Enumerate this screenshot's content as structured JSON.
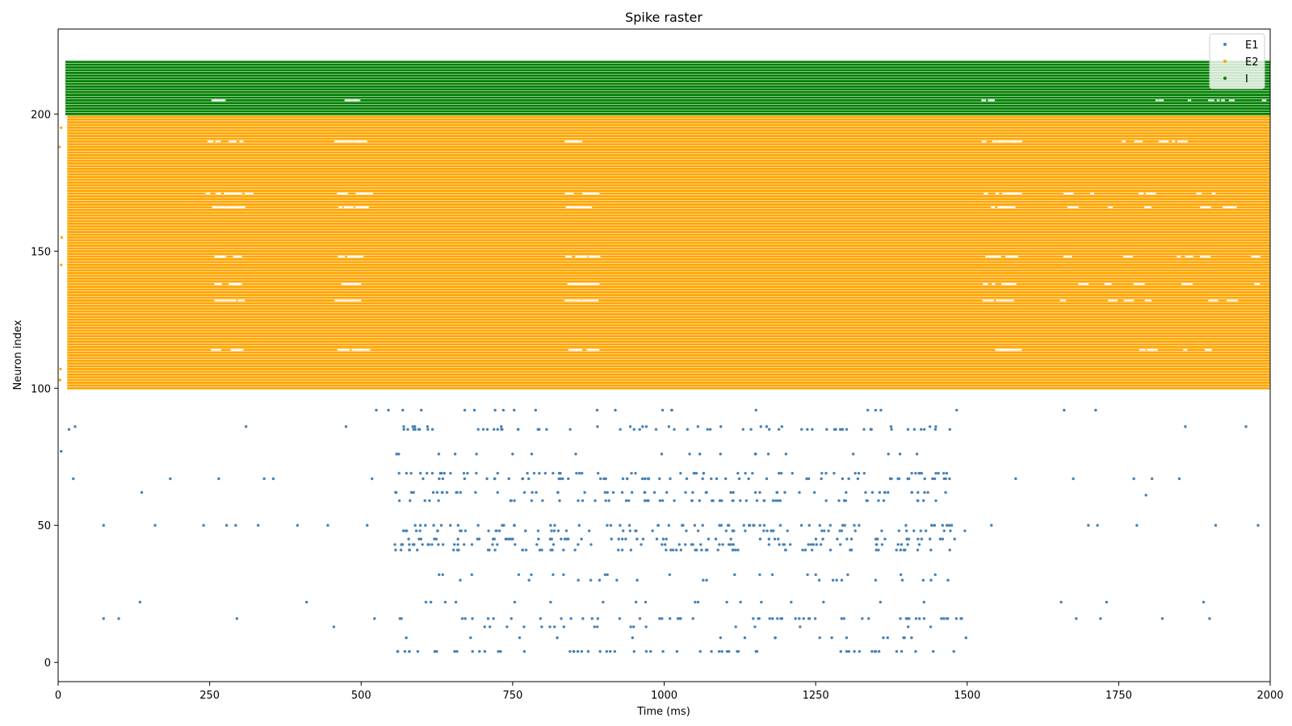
{
  "chart_data": {
    "type": "scatter",
    "title": "Spike raster",
    "xlabel": "Time (ms)",
    "ylabel": "Neuron index",
    "xlim": [
      0,
      2000
    ],
    "ylim": [
      -7,
      231
    ],
    "x_ticks": [
      0,
      250,
      500,
      750,
      1000,
      1250,
      1500,
      1750,
      2000
    ],
    "y_ticks": [
      0,
      50,
      100,
      150,
      200
    ],
    "grid": false,
    "legend_position": "top-right",
    "series": [
      {
        "name": "E1",
        "color": "#4682b4",
        "neuron_range": [
          0,
          99
        ],
        "active_rows": [
          4,
          9,
          13,
          16,
          22,
          30,
          32,
          41,
          43,
          45,
          48,
          50,
          59,
          62,
          67,
          69,
          76,
          85,
          86,
          92
        ],
        "dense_window_ms": [
          555,
          1500
        ],
        "sparse_points": [
          [
            5,
            77
          ],
          [
            18,
            85
          ],
          [
            28,
            86
          ],
          [
            25,
            67
          ],
          [
            75,
            16
          ],
          [
            75,
            50
          ],
          [
            100,
            16
          ],
          [
            135,
            22
          ],
          [
            138,
            62
          ],
          [
            160,
            50
          ],
          [
            185,
            67
          ],
          [
            240,
            50
          ],
          [
            265,
            67
          ],
          [
            278,
            50
          ],
          [
            293,
            50
          ],
          [
            295,
            16
          ],
          [
            310,
            86
          ],
          [
            330,
            50
          ],
          [
            340,
            67
          ],
          [
            355,
            67
          ],
          [
            395,
            50
          ],
          [
            410,
            22
          ],
          [
            445,
            50
          ],
          [
            455,
            13
          ],
          [
            475,
            86
          ],
          [
            510,
            50
          ],
          [
            518,
            67
          ],
          [
            522,
            16
          ],
          [
            525,
            92
          ],
          [
            545,
            92
          ],
          [
            750,
            76
          ],
          [
            1370,
            76
          ],
          [
            1540,
            50
          ],
          [
            1580,
            67
          ],
          [
            1655,
            22
          ],
          [
            1660,
            92
          ],
          [
            1675,
            67
          ],
          [
            1680,
            16
          ],
          [
            1700,
            50
          ],
          [
            1712,
            92
          ],
          [
            1715,
            50
          ],
          [
            1720,
            16
          ],
          [
            1730,
            22
          ],
          [
            1775,
            67
          ],
          [
            1780,
            50
          ],
          [
            1795,
            61
          ],
          [
            1805,
            67
          ],
          [
            1822,
            16
          ],
          [
            1850,
            67
          ],
          [
            1860,
            86
          ],
          [
            1890,
            22
          ],
          [
            1900,
            16
          ],
          [
            1910,
            50
          ],
          [
            1960,
            86
          ],
          [
            1980,
            50
          ]
        ]
      },
      {
        "name": "E2",
        "color": "#ffa500",
        "neuron_range": [
          100,
          199
        ],
        "firing": "near-continuous",
        "gap_rows": [
          114,
          132,
          138,
          148,
          166,
          171,
          190
        ],
        "early_outliers": [
          [
            3,
            103
          ],
          [
            4,
            107
          ],
          [
            5,
            145
          ],
          [
            6,
            155
          ],
          [
            2,
            188
          ],
          [
            5,
            195
          ]
        ]
      },
      {
        "name": "I",
        "color": "#008000",
        "neuron_range": [
          200,
          219
        ],
        "firing": "near-continuous",
        "gap_rows": [
          205
        ]
      }
    ]
  }
}
